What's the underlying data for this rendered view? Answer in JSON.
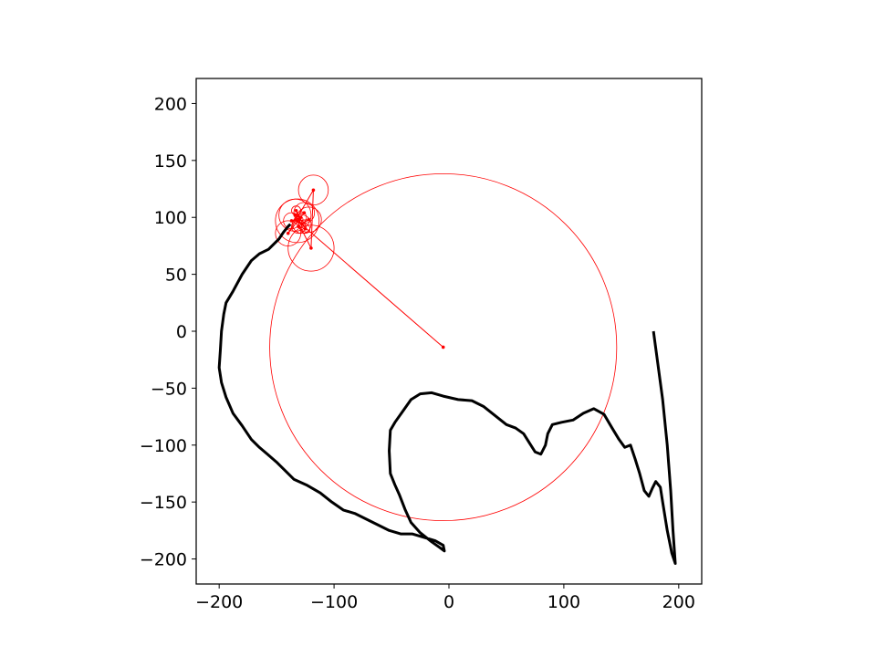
{
  "chart_data": {
    "type": "line",
    "title": "",
    "xlabel": "",
    "ylabel": "",
    "xlim": [
      -220,
      220
    ],
    "ylim": [
      -222,
      222
    ],
    "grid": false,
    "x_ticks": [
      -200,
      -100,
      0,
      100,
      200
    ],
    "y_ticks": [
      -200,
      -150,
      -100,
      -50,
      0,
      50,
      100,
      150,
      200
    ],
    "x_tick_labels": [
      "−200",
      "−100",
      "0",
      "100",
      "200"
    ],
    "y_tick_labels": [
      "−200",
      "−150",
      "−100",
      "−50",
      "0",
      "50",
      "100",
      "150",
      "200"
    ],
    "colors": {
      "path": "#000000",
      "epicycles": "#ff0000",
      "axes": "#000000",
      "background": "#ffffff"
    },
    "series": [
      {
        "type": "line",
        "points": [
          [
            178,
            0
          ],
          [
            182,
            -30
          ],
          [
            186,
            -60
          ],
          [
            190,
            -100
          ],
          [
            193,
            -140
          ],
          [
            195,
            -175
          ],
          [
            197,
            -204
          ],
          [
            194,
            -195
          ],
          [
            190,
            -175
          ],
          [
            186,
            -150
          ],
          [
            184,
            -137
          ],
          [
            180,
            -132
          ],
          [
            177,
            -138
          ],
          [
            174,
            -145
          ],
          [
            170,
            -140
          ],
          [
            166,
            -125
          ],
          [
            162,
            -112
          ],
          [
            158,
            -100
          ],
          [
            153,
            -102
          ],
          [
            148,
            -95
          ],
          [
            142,
            -85
          ],
          [
            135,
            -73
          ],
          [
            126,
            -68
          ],
          [
            117,
            -72
          ],
          [
            108,
            -78
          ],
          [
            98,
            -80
          ],
          [
            90,
            -82
          ],
          [
            86,
            -90
          ],
          [
            84,
            -100
          ],
          [
            80,
            -108
          ],
          [
            75,
            -106
          ],
          [
            70,
            -98
          ],
          [
            65,
            -90
          ],
          [
            58,
            -85
          ],
          [
            50,
            -82
          ],
          [
            40,
            -74
          ],
          [
            30,
            -66
          ],
          [
            20,
            -61
          ],
          [
            8,
            -60
          ],
          [
            -5,
            -57
          ],
          [
            -15,
            -54
          ],
          [
            -25,
            -55
          ],
          [
            -33,
            -60
          ],
          [
            -40,
            -70
          ],
          [
            -47,
            -80
          ],
          [
            -51,
            -87
          ],
          [
            -52,
            -105
          ],
          [
            -51,
            -125
          ],
          [
            -47,
            -135
          ],
          [
            -43,
            -144
          ],
          [
            -38,
            -157
          ],
          [
            -33,
            -168
          ],
          [
            -25,
            -177
          ],
          [
            -15,
            -185
          ],
          [
            -8,
            -190
          ],
          [
            -4,
            -193
          ],
          [
            -5,
            -188
          ],
          [
            -12,
            -184
          ],
          [
            -22,
            -181
          ],
          [
            -32,
            -178
          ],
          [
            -42,
            -178
          ],
          [
            -52,
            -175
          ],
          [
            -62,
            -170
          ],
          [
            -72,
            -165
          ],
          [
            -82,
            -160
          ],
          [
            -92,
            -157
          ],
          [
            -102,
            -150
          ],
          [
            -112,
            -142
          ],
          [
            -124,
            -135
          ],
          [
            -135,
            -130
          ],
          [
            -143,
            -122
          ],
          [
            -150,
            -115
          ],
          [
            -158,
            -108
          ],
          [
            -165,
            -102
          ],
          [
            -172,
            -95
          ],
          [
            -180,
            -83
          ],
          [
            -188,
            -72
          ],
          [
            -194,
            -58
          ],
          [
            -198,
            -45
          ],
          [
            -200,
            -32
          ],
          [
            -199,
            -17
          ],
          [
            -198,
            0
          ],
          [
            -196,
            15
          ],
          [
            -194,
            25
          ],
          [
            -188,
            35
          ],
          [
            -180,
            50
          ],
          [
            -172,
            62
          ],
          [
            -165,
            68
          ],
          [
            -157,
            72
          ],
          [
            -152,
            77
          ],
          [
            -148,
            81
          ],
          [
            -144,
            87
          ],
          [
            -140,
            92
          ],
          [
            -138,
            94
          ]
        ]
      }
    ],
    "epicycles": {
      "center_start": [
        -5,
        -14
      ],
      "arm_end": [
        -130,
        98
      ],
      "circles": [
        {
          "center": [
            -5,
            -14
          ],
          "radius": 151
        },
        {
          "center": [
            -132,
            97
          ],
          "radius": 19
        },
        {
          "center": [
            -120,
            73
          ],
          "radius": 20
        },
        {
          "center": [
            -118,
            124
          ],
          "radius": 13
        },
        {
          "center": [
            -140,
            86
          ],
          "radius": 11
        },
        {
          "center": [
            -126,
            104
          ],
          "radius": 9
        },
        {
          "center": [
            -134,
            102
          ],
          "radius": 14
        },
        {
          "center": [
            -128,
            94
          ],
          "radius": 8
        },
        {
          "center": [
            -122,
            98
          ],
          "radius": 11
        },
        {
          "center": [
            -137,
            97
          ],
          "radius": 7
        },
        {
          "center": [
            -129,
            100
          ],
          "radius": 5
        },
        {
          "center": [
            -131,
            92
          ],
          "radius": 6
        },
        {
          "center": [
            -125,
            90
          ],
          "radius": 4
        },
        {
          "center": [
            -133,
            106
          ],
          "radius": 4
        },
        {
          "center": [
            -130,
            98
          ],
          "radius": 3
        }
      ],
      "arm_points": [
        [
          -5,
          -14
        ],
        [
          -132,
          97
        ],
        [
          -120,
          73
        ],
        [
          -118,
          124
        ],
        [
          -140,
          86
        ],
        [
          -126,
          104
        ],
        [
          -134,
          102
        ],
        [
          -128,
          94
        ],
        [
          -122,
          98
        ],
        [
          -137,
          97
        ],
        [
          -129,
          100
        ],
        [
          -131,
          92
        ],
        [
          -125,
          90
        ],
        [
          -133,
          106
        ],
        [
          -130,
          98
        ]
      ]
    }
  }
}
